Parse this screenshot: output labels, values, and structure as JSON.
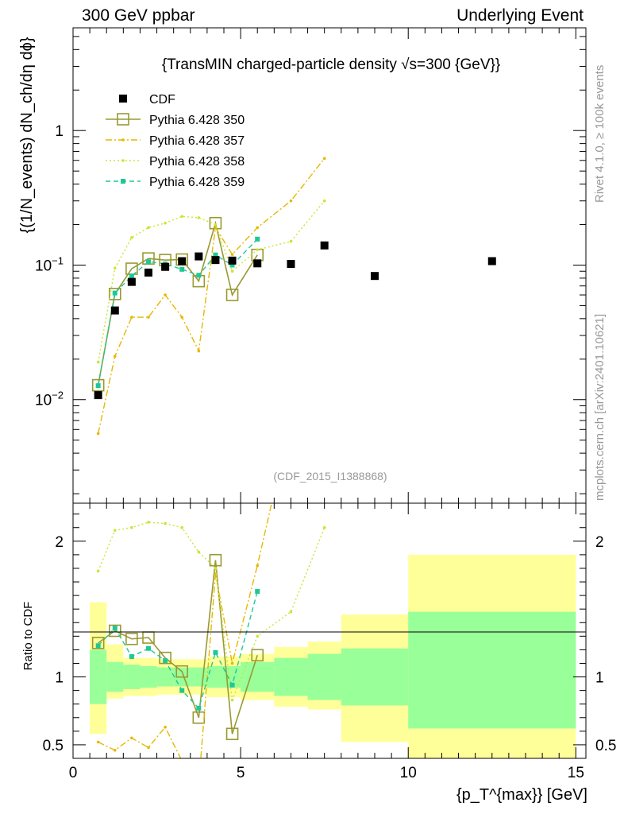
{
  "header": {
    "left": "300 GeV ppbar",
    "right": "Underlying Event"
  },
  "side_label_top": "Rivet 4.1.0, ≥ 100k events",
  "side_label_bottom": "mcplots.cern.ch [arXiv:2401.10621]",
  "colors": {
    "cdf": "#000000",
    "p350": "#999933",
    "p357": "#e6b800",
    "p358": "#c8e632",
    "p359": "#1ec896",
    "band_inner": "#99ff99",
    "band_outer": "#ffff99"
  },
  "chart_data": {
    "type": "scatter",
    "title": "{TransMIN charged-particle density √s=300 {GeV}}",
    "analysis": "(CDF_2015_I1388868)",
    "xlabel": "{p_T^{max}} [GeV]",
    "ylabel": "{(1/N_events) dN_ch/dη dϕ}",
    "ratio_ylabel": "Ratio to CDF",
    "xlim": [
      0,
      15.3
    ],
    "ylim": [
      0.0017,
      5.8
    ],
    "ratio_ylim": [
      0.4,
      2.28
    ],
    "x_ticks": [
      "0",
      "5",
      "10",
      "15"
    ],
    "y_ticks": [
      "10^{-2}",
      "10^{-1}",
      "1"
    ],
    "ratio_ticks": [
      "0.5",
      "1",
      "2"
    ],
    "legend": [
      "CDF",
      "Pythia 6.428 350",
      "Pythia 6.428 357",
      "Pythia 6.428 358",
      "Pythia 6.428 359"
    ],
    "data": {
      "name": "CDF",
      "x": [
        0.75,
        1.25,
        1.75,
        2.25,
        2.75,
        3.25,
        3.75,
        4.25,
        4.75,
        5.5,
        6.5,
        7.5,
        9.0,
        12.5
      ],
      "y": [
        0.0108,
        0.046,
        0.075,
        0.088,
        0.097,
        0.107,
        0.116,
        0.109,
        0.108,
        0.103,
        0.102,
        0.14,
        0.083,
        0.107
      ],
      "band_inner": [
        [
          0.5,
          1.0,
          0.8,
          1.2
        ],
        [
          1.0,
          1.5,
          0.89,
          1.11
        ],
        [
          1.5,
          2.0,
          0.91,
          1.09
        ],
        [
          2.0,
          2.5,
          0.92,
          1.08
        ],
        [
          2.5,
          3.0,
          0.93,
          1.07
        ],
        [
          3.0,
          3.5,
          0.93,
          1.07
        ],
        [
          3.5,
          4.0,
          0.93,
          1.07
        ],
        [
          4.0,
          5.0,
          0.92,
          1.08
        ],
        [
          5.0,
          6.0,
          0.89,
          1.11
        ],
        [
          6.0,
          7.0,
          0.86,
          1.14
        ],
        [
          7.0,
          8.0,
          0.83,
          1.17
        ],
        [
          8.0,
          10.0,
          0.79,
          1.21
        ],
        [
          10.0,
          15.0,
          0.62,
          1.48
        ]
      ],
      "band_outer": [
        [
          0.5,
          1.0,
          0.58,
          1.55
        ],
        [
          1.0,
          1.5,
          0.84,
          1.24
        ],
        [
          1.5,
          2.0,
          0.86,
          1.14
        ],
        [
          2.0,
          2.5,
          0.86,
          1.14
        ],
        [
          2.5,
          3.0,
          0.87,
          1.13
        ],
        [
          3.0,
          3.5,
          0.87,
          1.13
        ],
        [
          3.5,
          4.0,
          0.87,
          1.13
        ],
        [
          4.0,
          5.0,
          0.85,
          1.15
        ],
        [
          5.0,
          6.0,
          0.83,
          1.17
        ],
        [
          6.0,
          7.0,
          0.78,
          1.22
        ],
        [
          7.0,
          8.0,
          0.76,
          1.26
        ],
        [
          8.0,
          10.0,
          0.52,
          1.46
        ],
        [
          10.0,
          15.0,
          0.35,
          1.9
        ]
      ]
    },
    "series": [
      {
        "name": "Pythia 6.428 350",
        "key": "p350",
        "marker": "open-square",
        "x": [
          0.75,
          1.25,
          1.75,
          2.25,
          2.75,
          3.25,
          3.75,
          4.25,
          4.75,
          5.5
        ],
        "y": [
          0.0128,
          0.061,
          0.094,
          0.112,
          0.109,
          0.11,
          0.076,
          0.205,
          0.06,
          0.119
        ],
        "ratio": [
          1.25,
          1.34,
          1.28,
          1.29,
          1.14,
          1.04,
          0.7,
          1.86,
          0.58,
          1.16
        ]
      },
      {
        "name": "Pythia 6.428 357",
        "key": "p357",
        "marker": "small-dot",
        "x": [
          0.75,
          1.25,
          1.75,
          2.25,
          2.75,
          3.25,
          3.75,
          4.25,
          4.75,
          5.5,
          6.5,
          7.5
        ],
        "y": [
          0.0056,
          0.021,
          0.041,
          0.041,
          0.06,
          0.041,
          0.023,
          0.19,
          0.12,
          0.19,
          0.3,
          0.62
        ],
        "ratio": [
          0.52,
          0.46,
          0.55,
          0.48,
          0.63,
          0.38,
          0.21,
          1.76,
          1.1,
          1.82,
          2.9,
          4.4
        ]
      },
      {
        "name": "Pythia 6.428 358",
        "key": "p358",
        "marker": "small-dot",
        "x": [
          0.75,
          1.25,
          1.75,
          2.25,
          2.75,
          3.25,
          3.75,
          4.25,
          4.75,
          5.5,
          6.5,
          7.5
        ],
        "y": [
          0.019,
          0.095,
          0.16,
          0.19,
          0.205,
          0.23,
          0.225,
          0.2,
          0.09,
          0.13,
          0.15,
          0.3
        ],
        "ratio": [
          1.78,
          2.08,
          2.1,
          2.14,
          2.13,
          2.1,
          1.92,
          1.8,
          0.83,
          1.3,
          1.48,
          2.1
        ]
      },
      {
        "name": "Pythia 6.428 359",
        "key": "p359",
        "marker": "small-square",
        "x": [
          0.75,
          1.25,
          1.75,
          2.25,
          2.75,
          3.25,
          3.75,
          4.25,
          4.75,
          5.5
        ],
        "y": [
          0.0127,
          0.062,
          0.083,
          0.106,
          0.102,
          0.093,
          0.084,
          0.119,
          0.1,
          0.156
        ],
        "ratio": [
          1.23,
          1.36,
          1.15,
          1.21,
          1.12,
          0.9,
          0.77,
          1.18,
          0.94,
          1.63
        ]
      }
    ]
  }
}
